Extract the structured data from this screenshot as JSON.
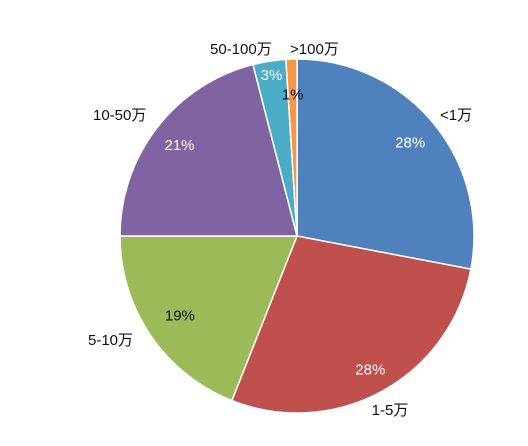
{
  "chart_data": {
    "type": "pie",
    "categories": [
      "<1万",
      "1-5万",
      "5-10万",
      "10-50万",
      "50-100万",
      ">100万"
    ],
    "values": [
      28,
      28,
      19,
      21,
      3,
      1
    ],
    "labels": [
      "28%",
      "28%",
      "19%",
      "21%",
      "3%",
      "1%"
    ],
    "colors": [
      "#4F81BD",
      "#C0504D",
      "#9BBB59",
      "#8064A2",
      "#4BACC6",
      "#F79646"
    ],
    "label_colors": [
      "#ffffff",
      "#ffffff",
      "#111111",
      "#ffffff",
      "#ffffff",
      "#111111"
    ],
    "start_angle_deg": 0,
    "direction": "clockwise",
    "legend": "none"
  }
}
